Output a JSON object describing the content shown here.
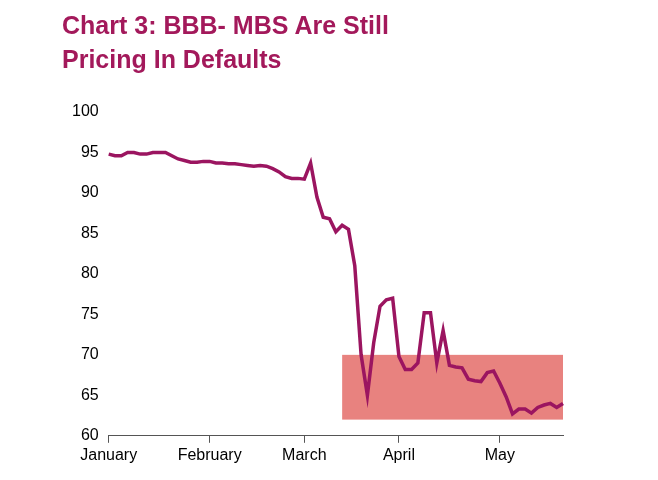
{
  "chart_data": {
    "type": "line",
    "title": [
      "Chart 3: BBB- MBS Are Still",
      "Pricing In Defaults"
    ],
    "title_color": "#a3195b",
    "categories": [
      "January",
      null,
      null,
      null,
      null,
      null,
      null,
      null,
      null,
      null,
      null,
      null,
      null,
      null,
      null,
      null,
      "February",
      null,
      null,
      null,
      null,
      null,
      null,
      null,
      null,
      null,
      null,
      null,
      null,
      null,
      null,
      "March",
      null,
      null,
      null,
      null,
      null,
      null,
      null,
      null,
      null,
      null,
      null,
      null,
      null,
      null,
      "April",
      null,
      null,
      null,
      null,
      null,
      null,
      null,
      null,
      null,
      null,
      null,
      null,
      null,
      null,
      null,
      "May",
      null,
      null,
      null,
      null,
      null,
      null,
      null,
      null,
      null,
      null
    ],
    "values": [
      94.8,
      94.6,
      94.6,
      95.0,
      95.0,
      94.8,
      94.8,
      95.0,
      95.0,
      95.0,
      94.6,
      94.2,
      94.0,
      93.8,
      93.8,
      93.9,
      93.9,
      93.7,
      93.7,
      93.6,
      93.6,
      93.5,
      93.4,
      93.3,
      93.4,
      93.3,
      93.0,
      92.6,
      92.0,
      91.8,
      91.8,
      91.7,
      93.7,
      89.5,
      87.0,
      86.8,
      85.2,
      86.0,
      85.5,
      81.0,
      70.0,
      65.0,
      71.5,
      76.0,
      76.8,
      77.0,
      69.8,
      68.2,
      68.2,
      69.0,
      75.2,
      75.2,
      69.0,
      73.0,
      68.7,
      68.5,
      68.4,
      67.0,
      66.8,
      66.7,
      67.8,
      68.0,
      66.5,
      64.8,
      62.7,
      63.3,
      63.3,
      62.8,
      63.5,
      63.8,
      64.0,
      63.5,
      64.0
    ],
    "color": "#9b1560",
    "band": {
      "start": 37,
      "end": 72,
      "ylim": [
        62,
        70
      ],
      "color": "#e8827f"
    },
    "ylim": [
      60,
      100
    ],
    "yticks": [
      60,
      65,
      70,
      75,
      80,
      85,
      90,
      95,
      100
    ],
    "grid": false
  }
}
